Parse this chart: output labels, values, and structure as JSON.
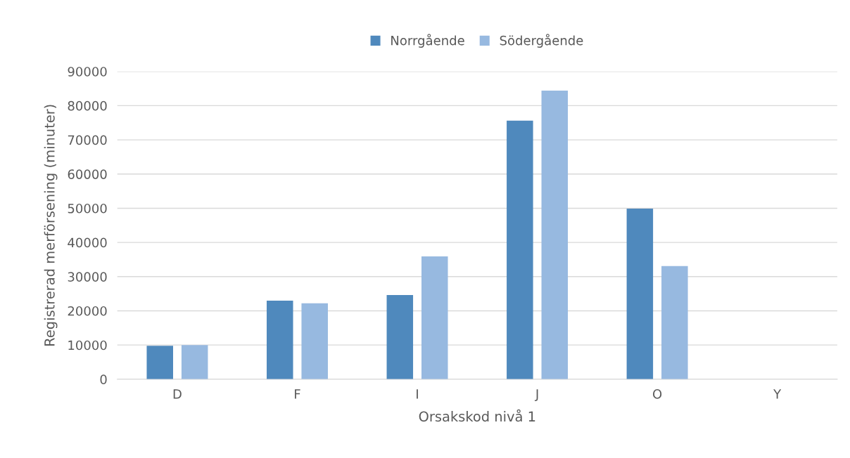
{
  "chart_data": {
    "type": "bar",
    "xlabel": "Orsakskod nivå 1",
    "ylabel": "Registrerad merförsening (minuter)",
    "categories": [
      "D",
      "F",
      "I",
      "J",
      "O",
      "Y"
    ],
    "series": [
      {
        "name": "Norrgående",
        "color": "#4f89bd",
        "values": [
          9800,
          23000,
          24600,
          75600,
          49900,
          0
        ]
      },
      {
        "name": "Södergående",
        "color": "#97b9e0",
        "values": [
          10000,
          22200,
          35900,
          84400,
          33100,
          0
        ]
      }
    ],
    "ylim": [
      0,
      90000
    ],
    "yticks": [
      0,
      10000,
      20000,
      30000,
      40000,
      50000,
      60000,
      70000,
      80000,
      90000
    ],
    "grid": "y",
    "legend": "top"
  }
}
